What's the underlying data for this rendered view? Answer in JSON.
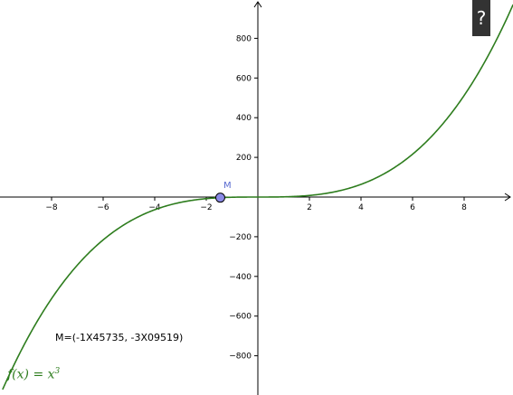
{
  "help_button": {
    "label": "?"
  },
  "point": {
    "name": "M",
    "coords_text": "M=(-1X45735, -3X09519)"
  },
  "function": {
    "lhs": "f(x) = x",
    "exponent": "3"
  },
  "colors": {
    "curve": "#2e7d1e",
    "point_fill": "#8a8ae6",
    "axis": "#000000"
  },
  "chart_data": {
    "type": "line",
    "expression": "x^3",
    "xlim": [
      -9.9,
      9.9
    ],
    "ylim": [
      -980,
      990
    ],
    "x_ticks": [
      -8,
      -6,
      -4,
      -2,
      2,
      4,
      6,
      8
    ],
    "y_ticks": [
      -800,
      -600,
      -400,
      -200,
      200,
      400,
      600,
      800
    ],
    "point": {
      "x": -1.45735,
      "y": -3.09519
    },
    "grid": false
  }
}
